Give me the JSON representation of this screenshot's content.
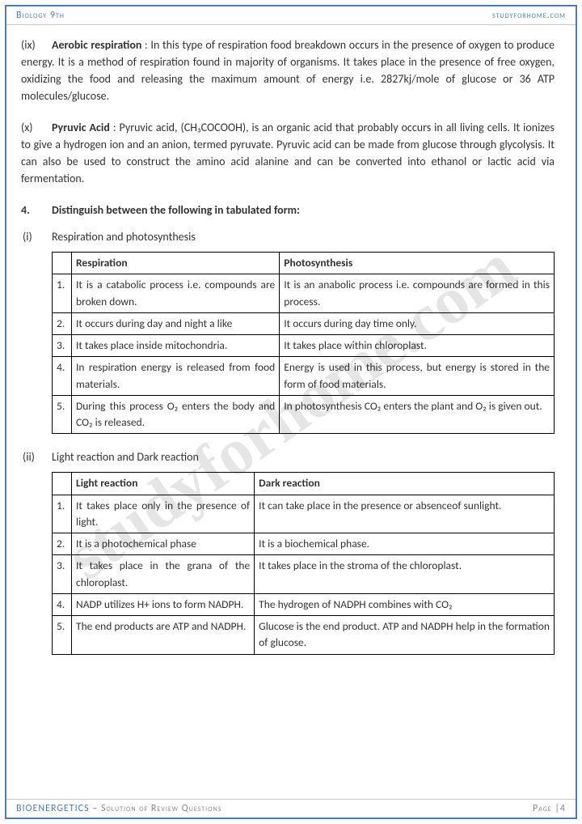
{
  "header": {
    "left": "Biology 9th",
    "right": "studyforhome.com"
  },
  "watermark": "studyforhome.com",
  "defs": [
    {
      "num": "(ix)",
      "term": "Aerobic respiration",
      "body": " : In this type of respiration food breakdown occurs in the presence of oxygen to produce energy. It is a method of respiration found in majority of organisms. It takes place in the presence of free oxygen, oxidizing the food and releasing the maximum amount of energy i.e. 2827kj/mole of glucose or 36 ATP molecules/glucose."
    },
    {
      "num": "(x)",
      "term": "Pyruvic Acid",
      "body": " : Pyruvic acid, (CH₃COCOOH), is an organic acid that probably occurs in all living cells. It ionizes to give a hydrogen ion and an anion, termed pyruvate. Pyruvic acid can be made from glucose through glycolysis. It can also be used to construct the amino acid alanine and can be converted into ethanol or lactic acid via fermentation."
    }
  ],
  "q4": {
    "num": "4.",
    "text": "Distinguish between the following in tabulated form:"
  },
  "tables": [
    {
      "sub": "(i)",
      "title": "Respiration and photosynthesis",
      "h1": "Respiration",
      "h2": "Photosynthesis",
      "rows": [
        {
          "n": "1.",
          "a": "It is a catabolic process i.e. compounds are broken down.",
          "b": "It is an anabolic process i.e. compounds are formed in this process."
        },
        {
          "n": "2.",
          "a": "It occurs during day and night a like",
          "b": "It occurs during day time only."
        },
        {
          "n": "3.",
          "a": "It takes place inside mitochondria.",
          "b": "It takes place within chloroplast."
        },
        {
          "n": "4.",
          "a": "In respiration energy is released from food materials.",
          "b": "Energy is used in this process, but energy is stored in the form of food materials."
        },
        {
          "n": "5.",
          "a": "During this process O₂ enters the body and CO₂ is released.",
          "b": "In photosynthesis CO₂ enters the plant and O₂ is given out."
        }
      ]
    },
    {
      "sub": "(ii)",
      "title": "Light reaction and Dark reaction",
      "h1": "Light reaction",
      "h2": "Dark reaction",
      "rows": [
        {
          "n": "1.",
          "a": "It takes place only in the presence of light.",
          "b": "It can take place in the presence or absenceof sunlight."
        },
        {
          "n": "2.",
          "a": "It is a photochemical phase",
          "b": "It is a biochemical phase."
        },
        {
          "n": "3.",
          "a": "It takes place in the grana of the chloroplast.",
          "b": "It takes place in the stroma of the chloroplast."
        },
        {
          "n": "4.",
          "a": "NADP utilizes H+ ions to form NADPH.",
          "b": "The hydrogen of NADPH combines with CO₂"
        },
        {
          "n": "5.",
          "a": "The end products are ATP and NADPH.",
          "b": "Glucose is the end product. ATP and NADPH help in the formation of glucose."
        }
      ]
    }
  ],
  "footer": {
    "title": "BIOENERGETICS",
    "sub": " – Solution of Review Questions",
    "page": "Page |4"
  }
}
